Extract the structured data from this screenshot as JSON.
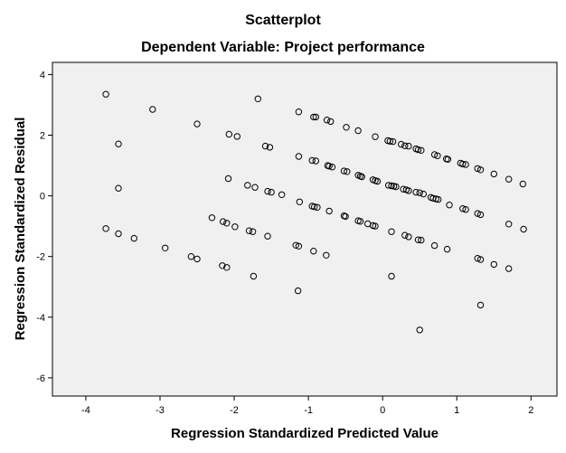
{
  "chart_data": {
    "type": "scatter",
    "title": "Scatterplot",
    "subtitle": "Dependent Variable: Project performance",
    "xlabel": "Regression Standardized Predicted Value",
    "ylabel": "Regression Standardized Residual",
    "xlim": [
      -4.45,
      2.35
    ],
    "ylim": [
      -6.6,
      4.4
    ],
    "xticks": [
      -4,
      -3,
      -2,
      -1,
      0,
      1,
      2
    ],
    "yticks": [
      -6,
      -4,
      -2,
      0,
      2,
      4
    ],
    "grid": false,
    "plot_background": "#f0f0f0",
    "marker": "hollow-circle",
    "points": [
      [
        -3.73,
        3.35
      ],
      [
        -3.1,
        2.85
      ],
      [
        -2.5,
        2.37
      ],
      [
        -1.68,
        3.2
      ],
      [
        -1.13,
        2.77
      ],
      [
        -0.93,
        2.6
      ],
      [
        -0.9,
        2.6
      ],
      [
        -0.75,
        2.5
      ],
      [
        -0.7,
        2.45
      ],
      [
        -0.49,
        2.26
      ],
      [
        -0.33,
        2.15
      ],
      [
        -0.1,
        1.95
      ],
      [
        0.07,
        1.82
      ],
      [
        0.1,
        1.8
      ],
      [
        0.14,
        1.79
      ],
      [
        0.25,
        1.7
      ],
      [
        0.3,
        1.65
      ],
      [
        0.35,
        1.64
      ],
      [
        0.45,
        1.55
      ],
      [
        0.48,
        1.52
      ],
      [
        0.52,
        1.5
      ],
      [
        0.7,
        1.36
      ],
      [
        0.74,
        1.32
      ],
      [
        0.86,
        1.22
      ],
      [
        0.88,
        1.2
      ],
      [
        1.05,
        1.08
      ],
      [
        1.08,
        1.05
      ],
      [
        1.12,
        1.03
      ],
      [
        1.28,
        0.9
      ],
      [
        1.32,
        0.86
      ],
      [
        1.5,
        0.72
      ],
      [
        1.7,
        0.55
      ],
      [
        1.89,
        0.39
      ],
      [
        -3.56,
        1.71
      ],
      [
        -2.07,
        2.03
      ],
      [
        -1.96,
        1.96
      ],
      [
        -1.58,
        1.64
      ],
      [
        -1.52,
        1.6
      ],
      [
        -1.13,
        1.3
      ],
      [
        -0.95,
        1.17
      ],
      [
        -0.9,
        1.15
      ],
      [
        -0.74,
        1.0
      ],
      [
        -0.72,
        0.98
      ],
      [
        -0.68,
        0.95
      ],
      [
        -0.52,
        0.82
      ],
      [
        -0.48,
        0.8
      ],
      [
        -0.33,
        0.68
      ],
      [
        -0.3,
        0.65
      ],
      [
        -0.28,
        0.63
      ],
      [
        -0.13,
        0.53
      ],
      [
        -0.1,
        0.5
      ],
      [
        -0.07,
        0.48
      ],
      [
        0.08,
        0.35
      ],
      [
        0.12,
        0.33
      ],
      [
        0.15,
        0.32
      ],
      [
        0.18,
        0.3
      ],
      [
        0.28,
        0.22
      ],
      [
        0.32,
        0.2
      ],
      [
        0.35,
        0.17
      ],
      [
        0.45,
        0.12
      ],
      [
        0.5,
        0.1
      ],
      [
        0.55,
        0.06
      ],
      [
        0.65,
        -0.05
      ],
      [
        0.68,
        -0.08
      ],
      [
        0.72,
        -0.1
      ],
      [
        0.75,
        -0.12
      ],
      [
        0.9,
        -0.3
      ],
      [
        1.08,
        -0.42
      ],
      [
        1.12,
        -0.45
      ],
      [
        1.28,
        -0.58
      ],
      [
        1.32,
        -0.62
      ],
      [
        1.7,
        -0.93
      ],
      [
        1.9,
        -1.1
      ],
      [
        -3.56,
        0.25
      ],
      [
        -2.08,
        0.57
      ],
      [
        -1.82,
        0.35
      ],
      [
        -1.72,
        0.28
      ],
      [
        -1.55,
        0.15
      ],
      [
        -1.5,
        0.12
      ],
      [
        -1.36,
        0.04
      ],
      [
        -1.12,
        -0.2
      ],
      [
        -0.95,
        -0.34
      ],
      [
        -0.92,
        -0.36
      ],
      [
        -0.88,
        -0.38
      ],
      [
        -0.72,
        -0.5
      ],
      [
        -0.52,
        -0.66
      ],
      [
        -0.5,
        -0.68
      ],
      [
        -0.33,
        -0.82
      ],
      [
        -0.3,
        -0.84
      ],
      [
        -0.2,
        -0.92
      ],
      [
        -0.13,
        -0.98
      ],
      [
        -0.1,
        -1.0
      ],
      [
        0.12,
        -1.18
      ],
      [
        0.3,
        -1.3
      ],
      [
        0.35,
        -1.35
      ],
      [
        0.48,
        -1.45
      ],
      [
        0.52,
        -1.46
      ],
      [
        0.7,
        -1.64
      ],
      [
        0.87,
        -1.76
      ],
      [
        -3.73,
        -1.08
      ],
      [
        -3.56,
        -1.25
      ],
      [
        -3.35,
        -1.4
      ],
      [
        -2.93,
        -1.72
      ],
      [
        -2.3,
        -0.72
      ],
      [
        -2.15,
        -0.85
      ],
      [
        -2.1,
        -0.9
      ],
      [
        -1.99,
        -1.02
      ],
      [
        -1.8,
        -1.15
      ],
      [
        -1.75,
        -1.18
      ],
      [
        -1.55,
        -1.33
      ],
      [
        -1.17,
        -1.63
      ],
      [
        -1.13,
        -1.66
      ],
      [
        -0.93,
        -1.82
      ],
      [
        -0.76,
        -1.96
      ],
      [
        -2.58,
        -2.0
      ],
      [
        -2.5,
        -2.08
      ],
      [
        -2.16,
        -2.3
      ],
      [
        -2.1,
        -2.36
      ],
      [
        -1.74,
        -2.65
      ],
      [
        -1.14,
        -3.13
      ],
      [
        0.12,
        -2.65
      ],
      [
        1.28,
        -2.06
      ],
      [
        1.32,
        -2.1
      ],
      [
        1.5,
        -2.26
      ],
      [
        1.7,
        -2.4
      ],
      [
        1.32,
        -3.6
      ],
      [
        0.5,
        -4.42
      ]
    ]
  }
}
